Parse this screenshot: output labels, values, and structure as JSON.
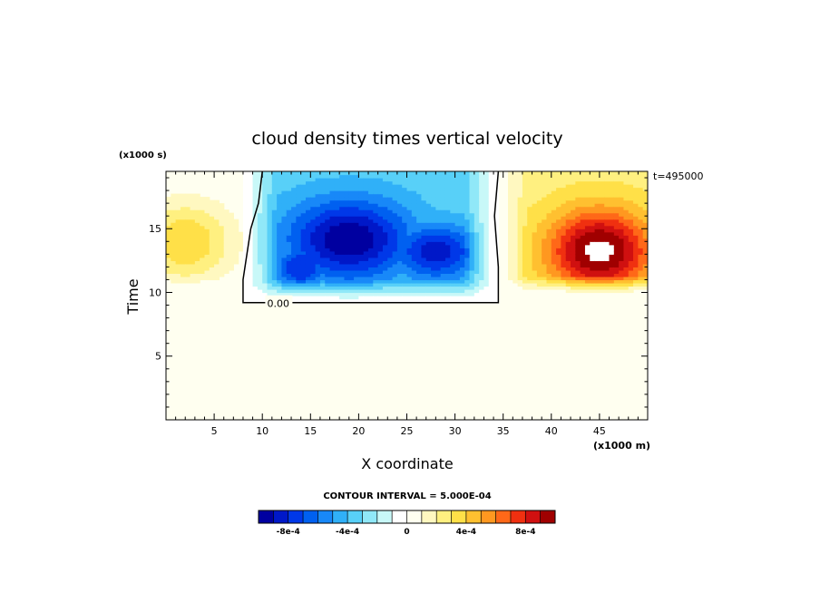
{
  "chart_data": {
    "type": "heatmap",
    "title": "cloud density times vertical velocity",
    "xlabel": "X coordinate",
    "ylabel": "Time",
    "x_unit": "(x1000 m)",
    "y_unit": "(x1000 s)",
    "time_label": "t=495000",
    "xlim": [
      0,
      50
    ],
    "ylim": [
      0,
      19.5
    ],
    "x_ticks": [
      5,
      10,
      15,
      20,
      25,
      30,
      35,
      40,
      45
    ],
    "y_ticks": [
      5,
      10,
      15
    ],
    "contour_label": "0.00",
    "contour_interval_label": "CONTOUR INTERVAL = 5.000E-04",
    "colorbar": {
      "colors": [
        "#0000a0",
        "#0018c8",
        "#0038e8",
        "#0060f0",
        "#1888f8",
        "#30b0f8",
        "#58d0f8",
        "#90e8f8",
        "#c8f8f8",
        "#ffffff",
        "#fffff0",
        "#fff8c0",
        "#fff080",
        "#ffe048",
        "#ffc030",
        "#ff9820",
        "#ff6818",
        "#f03010",
        "#d01010",
        "#a00000"
      ],
      "tick_labels": [
        "-8e-4",
        "-4e-4",
        "0",
        "4e-4",
        "8e-4"
      ],
      "tick_values": [
        -0.0008,
        -0.0004,
        0,
        0.0004,
        0.0008
      ],
      "range": [
        -0.001,
        0.001
      ]
    },
    "features": [
      {
        "kind": "negative-cell",
        "x_range": [
          8,
          34.5
        ],
        "t_range": [
          9.2,
          19.5
        ],
        "min_value": -0.001,
        "core_x": 19,
        "core_t": 14
      },
      {
        "kind": "positive-cell",
        "x_range": [
          37,
          50
        ],
        "t_range": [
          10,
          19.5
        ],
        "max_value": 0.001,
        "core_x": 45,
        "core_t": 13
      },
      {
        "kind": "positive-cell",
        "x_range": [
          0,
          8
        ],
        "t_range": [
          10,
          18
        ],
        "max_value": 0.0004,
        "core_x": 1,
        "core_t": 13.5
      }
    ]
  }
}
